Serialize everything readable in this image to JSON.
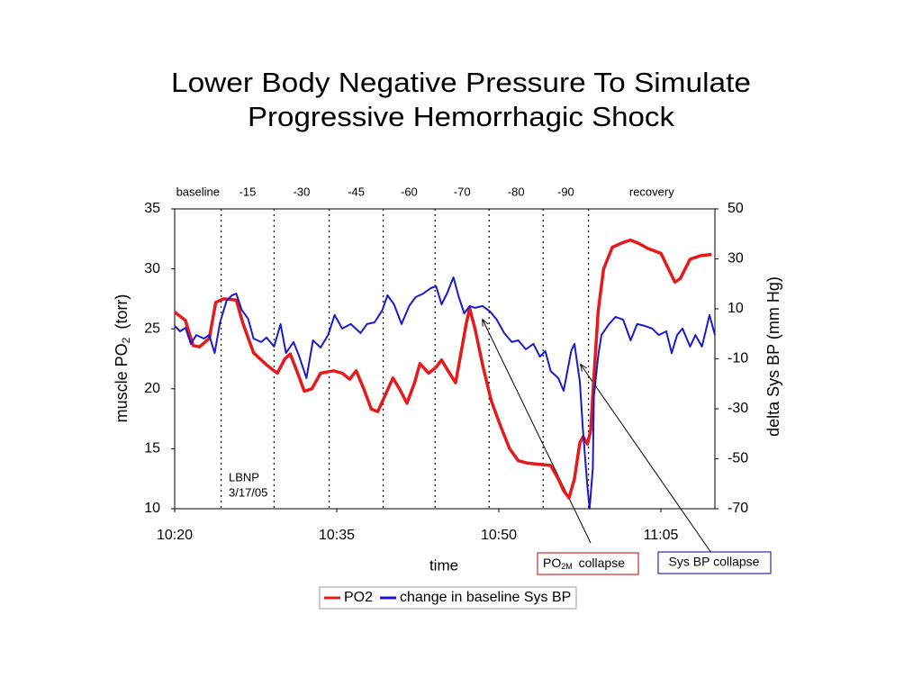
{
  "chart_data": {
    "type": "line",
    "title": [
      "Lower Body Negative Pressure To Simulate",
      "Progressive Hemorrhagic Shock"
    ],
    "xlabel": "time",
    "ylabel": {
      "text": "muscle PO",
      "sub": "2",
      "rest": " (torr)"
    },
    "y2label": "delta Sys BP (mm Hg)",
    "xlim": [
      620,
      670
    ],
    "xticks": [
      {
        "value": 620,
        "label": "10:20"
      },
      {
        "value": 635,
        "label": "10:35"
      },
      {
        "value": 650,
        "label": "10:50"
      },
      {
        "value": 665,
        "label": "11:05"
      }
    ],
    "ylim": [
      10,
      35
    ],
    "yticks": [
      10,
      15,
      20,
      25,
      30,
      35
    ],
    "y2lim": [
      -70,
      50
    ],
    "y2ticks": [
      -70,
      -50,
      -30,
      -10,
      10,
      30,
      50
    ],
    "phase_labels": [
      "baseline",
      "-15",
      "-30",
      "-45",
      "-60",
      "-70",
      "-80",
      "-90",
      "recovery"
    ],
    "phase_boundaries": [
      624.3,
      629.2,
      634.3,
      639.3,
      644.1,
      649.1,
      654.1,
      658.3
    ],
    "lbnp_note": [
      "LBNP",
      "3/17/05"
    ],
    "callouts": [
      {
        "text": "PO",
        "sub": "2M",
        "rest": " collapse"
      },
      {
        "text": "Sys BP collapse"
      }
    ],
    "series": [
      {
        "name": "PO2",
        "color": "#e41a1c",
        "x": [
          620,
          621,
          621.7,
          622.3,
          623.2,
          623.8,
          624.5,
          625.7,
          626.3,
          627.3,
          628.5,
          629.5,
          630.2,
          630.7,
          631.3,
          632,
          632.7,
          633.5,
          634.7,
          635.5,
          636.2,
          636.8,
          637.5,
          638.2,
          638.8,
          639.5,
          640.2,
          640.8,
          641.5,
          642.2,
          642.7,
          643.5,
          644.2,
          644.7,
          645.3,
          646,
          646.5,
          647,
          647.3,
          647.8,
          648.5,
          649.3,
          650.2,
          651,
          651.8,
          652.7,
          653.8,
          654.8,
          655.5,
          656,
          656.5,
          657,
          657.5,
          657.8,
          658.2,
          658.5,
          658.8,
          659.2,
          659.7,
          660.5,
          661.5,
          662.2,
          663,
          663.8,
          665,
          665.7,
          666.3,
          666.8,
          667.7,
          668.7,
          669.7
        ],
        "values": [
          26.4,
          25.7,
          23.6,
          23.5,
          24.2,
          27.2,
          27.5,
          27.4,
          25.5,
          23.0,
          22.0,
          21.3,
          22.5,
          22.9,
          21.5,
          19.8,
          20.0,
          21.3,
          21.5,
          21.3,
          20.8,
          21.5,
          20.0,
          18.3,
          18.1,
          19.5,
          20.9,
          20.0,
          18.8,
          20.5,
          22.1,
          21.3,
          21.8,
          22.4,
          21.5,
          20.5,
          23.0,
          25.5,
          26.7,
          25.0,
          22.0,
          19.0,
          16.8,
          15.0,
          14.0,
          13.8,
          13.7,
          13.6,
          12.5,
          11.5,
          10.9,
          12.5,
          15.5,
          16.0,
          15.4,
          16.5,
          21.0,
          26.5,
          30.0,
          31.8,
          32.2,
          32.4,
          32.1,
          31.7,
          31.3,
          30.0,
          28.9,
          29.2,
          30.8,
          31.1,
          31.2
        ]
      },
      {
        "name": "change in baseline Sys BP",
        "color": "#1a1acc",
        "axis": "y2",
        "x": [
          620,
          620.5,
          621,
          621.5,
          622,
          622.7,
          623.2,
          623.7,
          624.2,
          624.8,
          625.3,
          625.7,
          626.2,
          626.8,
          627.3,
          628,
          628.5,
          629.2,
          629.8,
          630.3,
          631,
          631.5,
          632.2,
          632.8,
          633.5,
          634.2,
          634.8,
          635.5,
          636.3,
          637.2,
          637.8,
          638.5,
          639.2,
          639.7,
          640.3,
          641,
          641.7,
          642.3,
          643,
          643.7,
          644.2,
          644.7,
          645.2,
          645.8,
          646.3,
          646.8,
          647.3,
          647.8,
          648.5,
          649.2,
          649.8,
          650.5,
          651.2,
          651.8,
          652.5,
          653.2,
          653.8,
          654.3,
          654.8,
          655.5,
          656,
          656.3,
          656.7,
          657,
          657.5,
          657.8,
          658.2,
          658.4,
          658.7,
          658.8,
          659.2,
          659.5,
          660.2,
          660.8,
          661.5,
          662.2,
          662.8,
          663.5,
          664.2,
          664.8,
          665.5,
          666,
          666.5,
          667,
          667.7,
          668.2,
          668.8,
          669.5,
          670
        ],
        "values": [
          3.2,
          1.0,
          2.4,
          -4,
          -0.5,
          -1.9,
          -0.5,
          -7.7,
          4.6,
          13.2,
          15.4,
          16.1,
          9.6,
          6.0,
          -1.9,
          -3.3,
          -1.5,
          -5.1,
          3.9,
          -7.7,
          -3.3,
          -8.7,
          -17.7,
          -2.6,
          -5.5,
          -0.5,
          7.5,
          2.1,
          3.9,
          0.3,
          3.9,
          4.6,
          9.3,
          15.4,
          11.8,
          3.9,
          11.1,
          14.7,
          16.1,
          18.3,
          19.0,
          11.8,
          16.1,
          22.6,
          14.7,
          8.2,
          11.1,
          10.4,
          11.1,
          8.9,
          5.7,
          0.3,
          -3.3,
          -2.6,
          -6.2,
          -4,
          -9.1,
          -6.9,
          -14.9,
          -17.7,
          -22.8,
          -16,
          -6.9,
          -4,
          -19.2,
          -39.4,
          -61.1,
          -70,
          -53.9,
          -25,
          -8.7,
          -0.5,
          3.9,
          6.8,
          5.7,
          -2.6,
          3.9,
          3.2,
          2.1,
          -0.5,
          1.0,
          -7.7,
          -0.5,
          2.1,
          -5.1,
          -0.5,
          -5.1,
          7.5,
          -0.5
        ]
      }
    ]
  }
}
